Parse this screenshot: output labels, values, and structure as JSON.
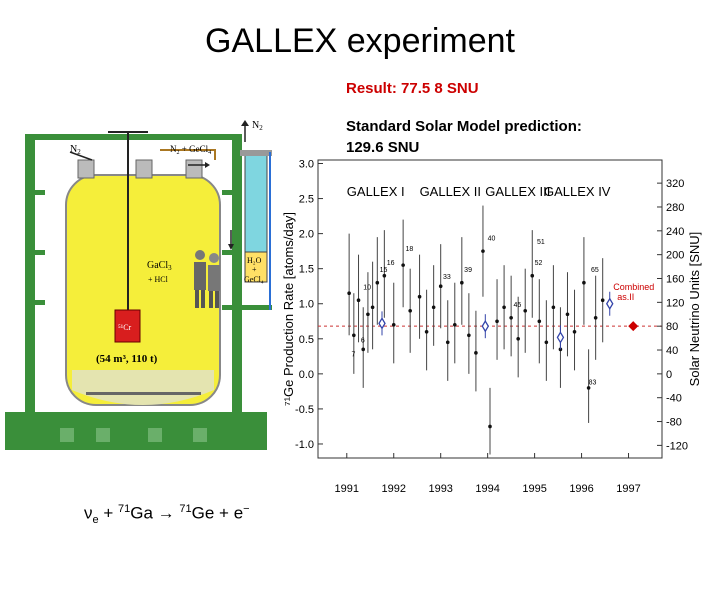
{
  "slide": {
    "title": "GALLEX experiment",
    "result": "Result: 77.5 8 SNU",
    "ssm_line1": "Standard Solar Model prediction:",
    "ssm_line2": "129.6 SNU",
    "reaction": {
      "nu": "ν",
      "nu_sub": "e",
      "plus1": " + ",
      "ga_sup": "71",
      "ga": "Ga",
      "arrow": " → ",
      "ge_sup": "71",
      "ge": "Ge + e",
      "e_sup": "−"
    }
  },
  "apparatus": {
    "n2_top": "N",
    "n2_top_sub": "2",
    "n2_left": "N",
    "n2_left_sub": "2",
    "n2_gecl_a": "N",
    "n2_gecl_sub": "2",
    "n2_gecl_b": " + GeCl",
    "n2_gecl_sub2": "4",
    "gacl_a": "GaCl",
    "gacl_sub": "3",
    "hcl": "+ HCl",
    "tank_spec": "(54 m³, 110 t)",
    "h2o": "H₂O",
    "plus": "+",
    "gecl4": "GeCl₄",
    "source": "⁵¹Cr"
  },
  "chart_data": {
    "type": "scatter",
    "ylabel": "⁷¹Ge Production Rate [atoms/day]",
    "y2label": "Solar Neutrino Units [SNU]",
    "ylim": [
      -1.2,
      3.05
    ],
    "xlim": [
      1990.6,
      1997.5
    ],
    "yticks": [
      "-1.0",
      "-0.5",
      "0.0",
      "0.5",
      "1.0",
      "1.5",
      "2.0",
      "2.5",
      "3.0"
    ],
    "ytick_values": [
      -1.0,
      -0.5,
      0.0,
      0.5,
      1.0,
      1.5,
      2.0,
      2.5,
      3.0
    ],
    "y2ticks": [
      "-120",
      "-80",
      "-40",
      "0",
      "40",
      "80",
      "120",
      "160",
      "200",
      "240",
      "280",
      "320"
    ],
    "y2tick_values": [
      -120,
      -80,
      -40,
      0,
      40,
      80,
      120,
      160,
      200,
      240,
      280,
      320
    ],
    "xticks": [
      "1991",
      "1992",
      "1993",
      "1994",
      "1995",
      "1996",
      "1997"
    ],
    "xtick_values": [
      1991,
      1992,
      1993,
      1994,
      1995,
      1996,
      1997
    ],
    "periods": [
      "GALLEX I",
      "GALLEX II",
      "GALLEX III",
      "GALLEX IV"
    ],
    "period_x": [
      1991.0,
      1992.55,
      1993.95,
      1995.2
    ],
    "combined_label_1": "Combined",
    "combined_label_2": "as.II",
    "combined": {
      "x": 1997.1,
      "y": 0.68
    },
    "period_means": [
      {
        "x": 1991.75,
        "y": 0.72
      },
      {
        "x": 1993.95,
        "y": 0.68
      },
      {
        "x": 1995.55,
        "y": 0.52
      },
      {
        "x": 1996.6,
        "y": 1.0
      }
    ],
    "reference_line_y": 0.68,
    "point_labels": [
      {
        "text": "15",
        "x": 1991.7,
        "y": 1.45
      },
      {
        "text": "16",
        "x": 1991.85,
        "y": 1.55
      },
      {
        "text": "18",
        "x": 1992.25,
        "y": 1.75
      },
      {
        "text": "39",
        "x": 1993.5,
        "y": 1.45
      },
      {
        "text": "40",
        "x": 1994.0,
        "y": 1.9
      },
      {
        "text": "51",
        "x": 1995.05,
        "y": 1.85
      },
      {
        "text": "33",
        "x": 1993.05,
        "y": 1.35
      },
      {
        "text": "45",
        "x": 1994.55,
        "y": 0.95
      },
      {
        "text": "52",
        "x": 1995.0,
        "y": 1.55
      },
      {
        "text": "65",
        "x": 1996.2,
        "y": 1.45
      },
      {
        "text": "6",
        "x": 1991.3,
        "y": 0.45
      },
      {
        "text": "83",
        "x": 1996.15,
        "y": -0.15
      },
      {
        "text": "7",
        "x": 1991.1,
        "y": 0.25
      },
      {
        "text": "10",
        "x": 1991.35,
        "y": 1.2
      }
    ],
    "points": [
      {
        "x": 1991.05,
        "y": 1.15,
        "lo": 0.55,
        "hi": 2.0
      },
      {
        "x": 1991.15,
        "y": 0.55,
        "lo": 0.0,
        "hi": 1.15
      },
      {
        "x": 1991.25,
        "y": 1.05,
        "lo": 0.45,
        "hi": 1.7
      },
      {
        "x": 1991.35,
        "y": 0.35,
        "lo": -0.2,
        "hi": 0.95
      },
      {
        "x": 1991.45,
        "y": 0.85,
        "lo": 0.3,
        "hi": 1.45
      },
      {
        "x": 1991.55,
        "y": 0.95,
        "lo": 0.35,
        "hi": 1.6
      },
      {
        "x": 1991.65,
        "y": 1.3,
        "lo": 0.7,
        "hi": 1.95
      },
      {
        "x": 1991.8,
        "y": 1.4,
        "lo": 0.8,
        "hi": 2.05
      },
      {
        "x": 1992.0,
        "y": 0.7,
        "lo": 0.15,
        "hi": 1.3
      },
      {
        "x": 1992.2,
        "y": 1.55,
        "lo": 0.95,
        "hi": 2.2
      },
      {
        "x": 1992.35,
        "y": 0.9,
        "lo": 0.3,
        "hi": 1.5
      },
      {
        "x": 1992.55,
        "y": 1.1,
        "lo": 0.5,
        "hi": 1.7
      },
      {
        "x": 1992.7,
        "y": 0.6,
        "lo": 0.05,
        "hi": 1.2
      },
      {
        "x": 1992.85,
        "y": 0.95,
        "lo": 0.4,
        "hi": 1.55
      },
      {
        "x": 1993.0,
        "y": 1.25,
        "lo": 0.65,
        "hi": 1.85
      },
      {
        "x": 1993.15,
        "y": 0.45,
        "lo": -0.1,
        "hi": 1.05
      },
      {
        "x": 1993.3,
        "y": 0.7,
        "lo": 0.15,
        "hi": 1.3
      },
      {
        "x": 1993.45,
        "y": 1.3,
        "lo": 0.7,
        "hi": 1.95
      },
      {
        "x": 1993.6,
        "y": 0.55,
        "lo": 0.0,
        "hi": 1.15
      },
      {
        "x": 1993.75,
        "y": 0.3,
        "lo": -0.25,
        "hi": 0.9
      },
      {
        "x": 1993.9,
        "y": 1.75,
        "lo": 1.1,
        "hi": 2.4
      },
      {
        "x": 1994.05,
        "y": -0.75,
        "lo": -1.15,
        "hi": -0.2
      },
      {
        "x": 1994.2,
        "y": 0.75,
        "lo": 0.2,
        "hi": 1.35
      },
      {
        "x": 1994.35,
        "y": 0.95,
        "lo": 0.35,
        "hi": 1.55
      },
      {
        "x": 1994.5,
        "y": 0.8,
        "lo": 0.25,
        "hi": 1.4
      },
      {
        "x": 1994.65,
        "y": 0.5,
        "lo": -0.05,
        "hi": 1.1
      },
      {
        "x": 1994.8,
        "y": 0.9,
        "lo": 0.3,
        "hi": 1.5
      },
      {
        "x": 1994.95,
        "y": 1.4,
        "lo": 0.8,
        "hi": 2.05
      },
      {
        "x": 1995.1,
        "y": 0.75,
        "lo": 0.15,
        "hi": 1.35
      },
      {
        "x": 1995.25,
        "y": 0.45,
        "lo": -0.1,
        "hi": 1.05
      },
      {
        "x": 1995.4,
        "y": 0.95,
        "lo": 0.35,
        "hi": 1.55
      },
      {
        "x": 1995.55,
        "y": 0.35,
        "lo": -0.2,
        "hi": 0.95
      },
      {
        "x": 1995.7,
        "y": 0.85,
        "lo": 0.25,
        "hi": 1.45
      },
      {
        "x": 1995.85,
        "y": 0.6,
        "lo": 0.05,
        "hi": 1.2
      },
      {
        "x": 1996.05,
        "y": 1.3,
        "lo": 0.7,
        "hi": 1.95
      },
      {
        "x": 1996.15,
        "y": -0.2,
        "lo": -0.7,
        "hi": 0.35
      },
      {
        "x": 1996.3,
        "y": 0.8,
        "lo": 0.2,
        "hi": 1.4
      },
      {
        "x": 1996.45,
        "y": 1.05,
        "lo": 0.45,
        "hi": 1.65
      }
    ]
  }
}
